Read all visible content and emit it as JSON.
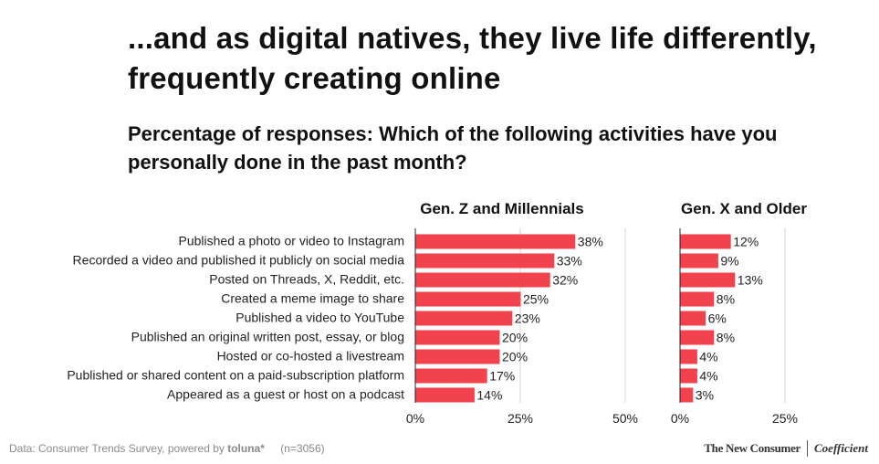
{
  "header": {
    "title": "...and as digital natives, they live life differently, frequently creating online",
    "subtitle": "Percentage of responses: Which of the following activities have you personally done in the past month?"
  },
  "chart_data": {
    "type": "bar",
    "orientation": "horizontal",
    "title": "Percentage of responses: Which of the following activities have you personally done in the past month?",
    "categories": [
      "Published a photo or video to Instagram",
      "Recorded a video and published it publicly on social media",
      "Posted on Threads, X, Reddit, etc.",
      "Created a meme image to share",
      "Published a video to YouTube",
      "Published an original written post, essay, or blog",
      "Hosted or co-hosted a livestream",
      "Published or shared content on a paid-subscription platform",
      "Appeared as a guest or host on a podcast"
    ],
    "series": [
      {
        "name": "Gen. Z and Millennials",
        "values": [
          38,
          33,
          32,
          25,
          23,
          20,
          20,
          17,
          14
        ],
        "labels": [
          "38%",
          "33%",
          "32%",
          "25%",
          "23%",
          "20%",
          "20%",
          "17%",
          "14%"
        ],
        "xlim": [
          0,
          50
        ],
        "ticks": [
          0,
          25,
          50
        ],
        "tick_labels": [
          "0%",
          "25%",
          "50%"
        ]
      },
      {
        "name": "Gen. X and Older",
        "values": [
          12,
          9,
          13,
          8,
          6,
          8,
          4,
          4,
          3
        ],
        "labels": [
          "12%",
          "9%",
          "13%",
          "8%",
          "6%",
          "8%",
          "4%",
          "4%",
          "3%"
        ],
        "xlim": [
          0,
          25
        ],
        "ticks": [
          0,
          25
        ],
        "tick_labels": [
          "0%",
          "25%"
        ]
      }
    ],
    "bar_color": "#f2424e",
    "grid": true
  },
  "footer": {
    "source_prefix": "Data: Consumer Trends Survey, powered by",
    "source_brand": "toluna*",
    "sample": "(n=3056)",
    "brand_left": "The New Consumer",
    "brand_right": "Coefficient"
  }
}
